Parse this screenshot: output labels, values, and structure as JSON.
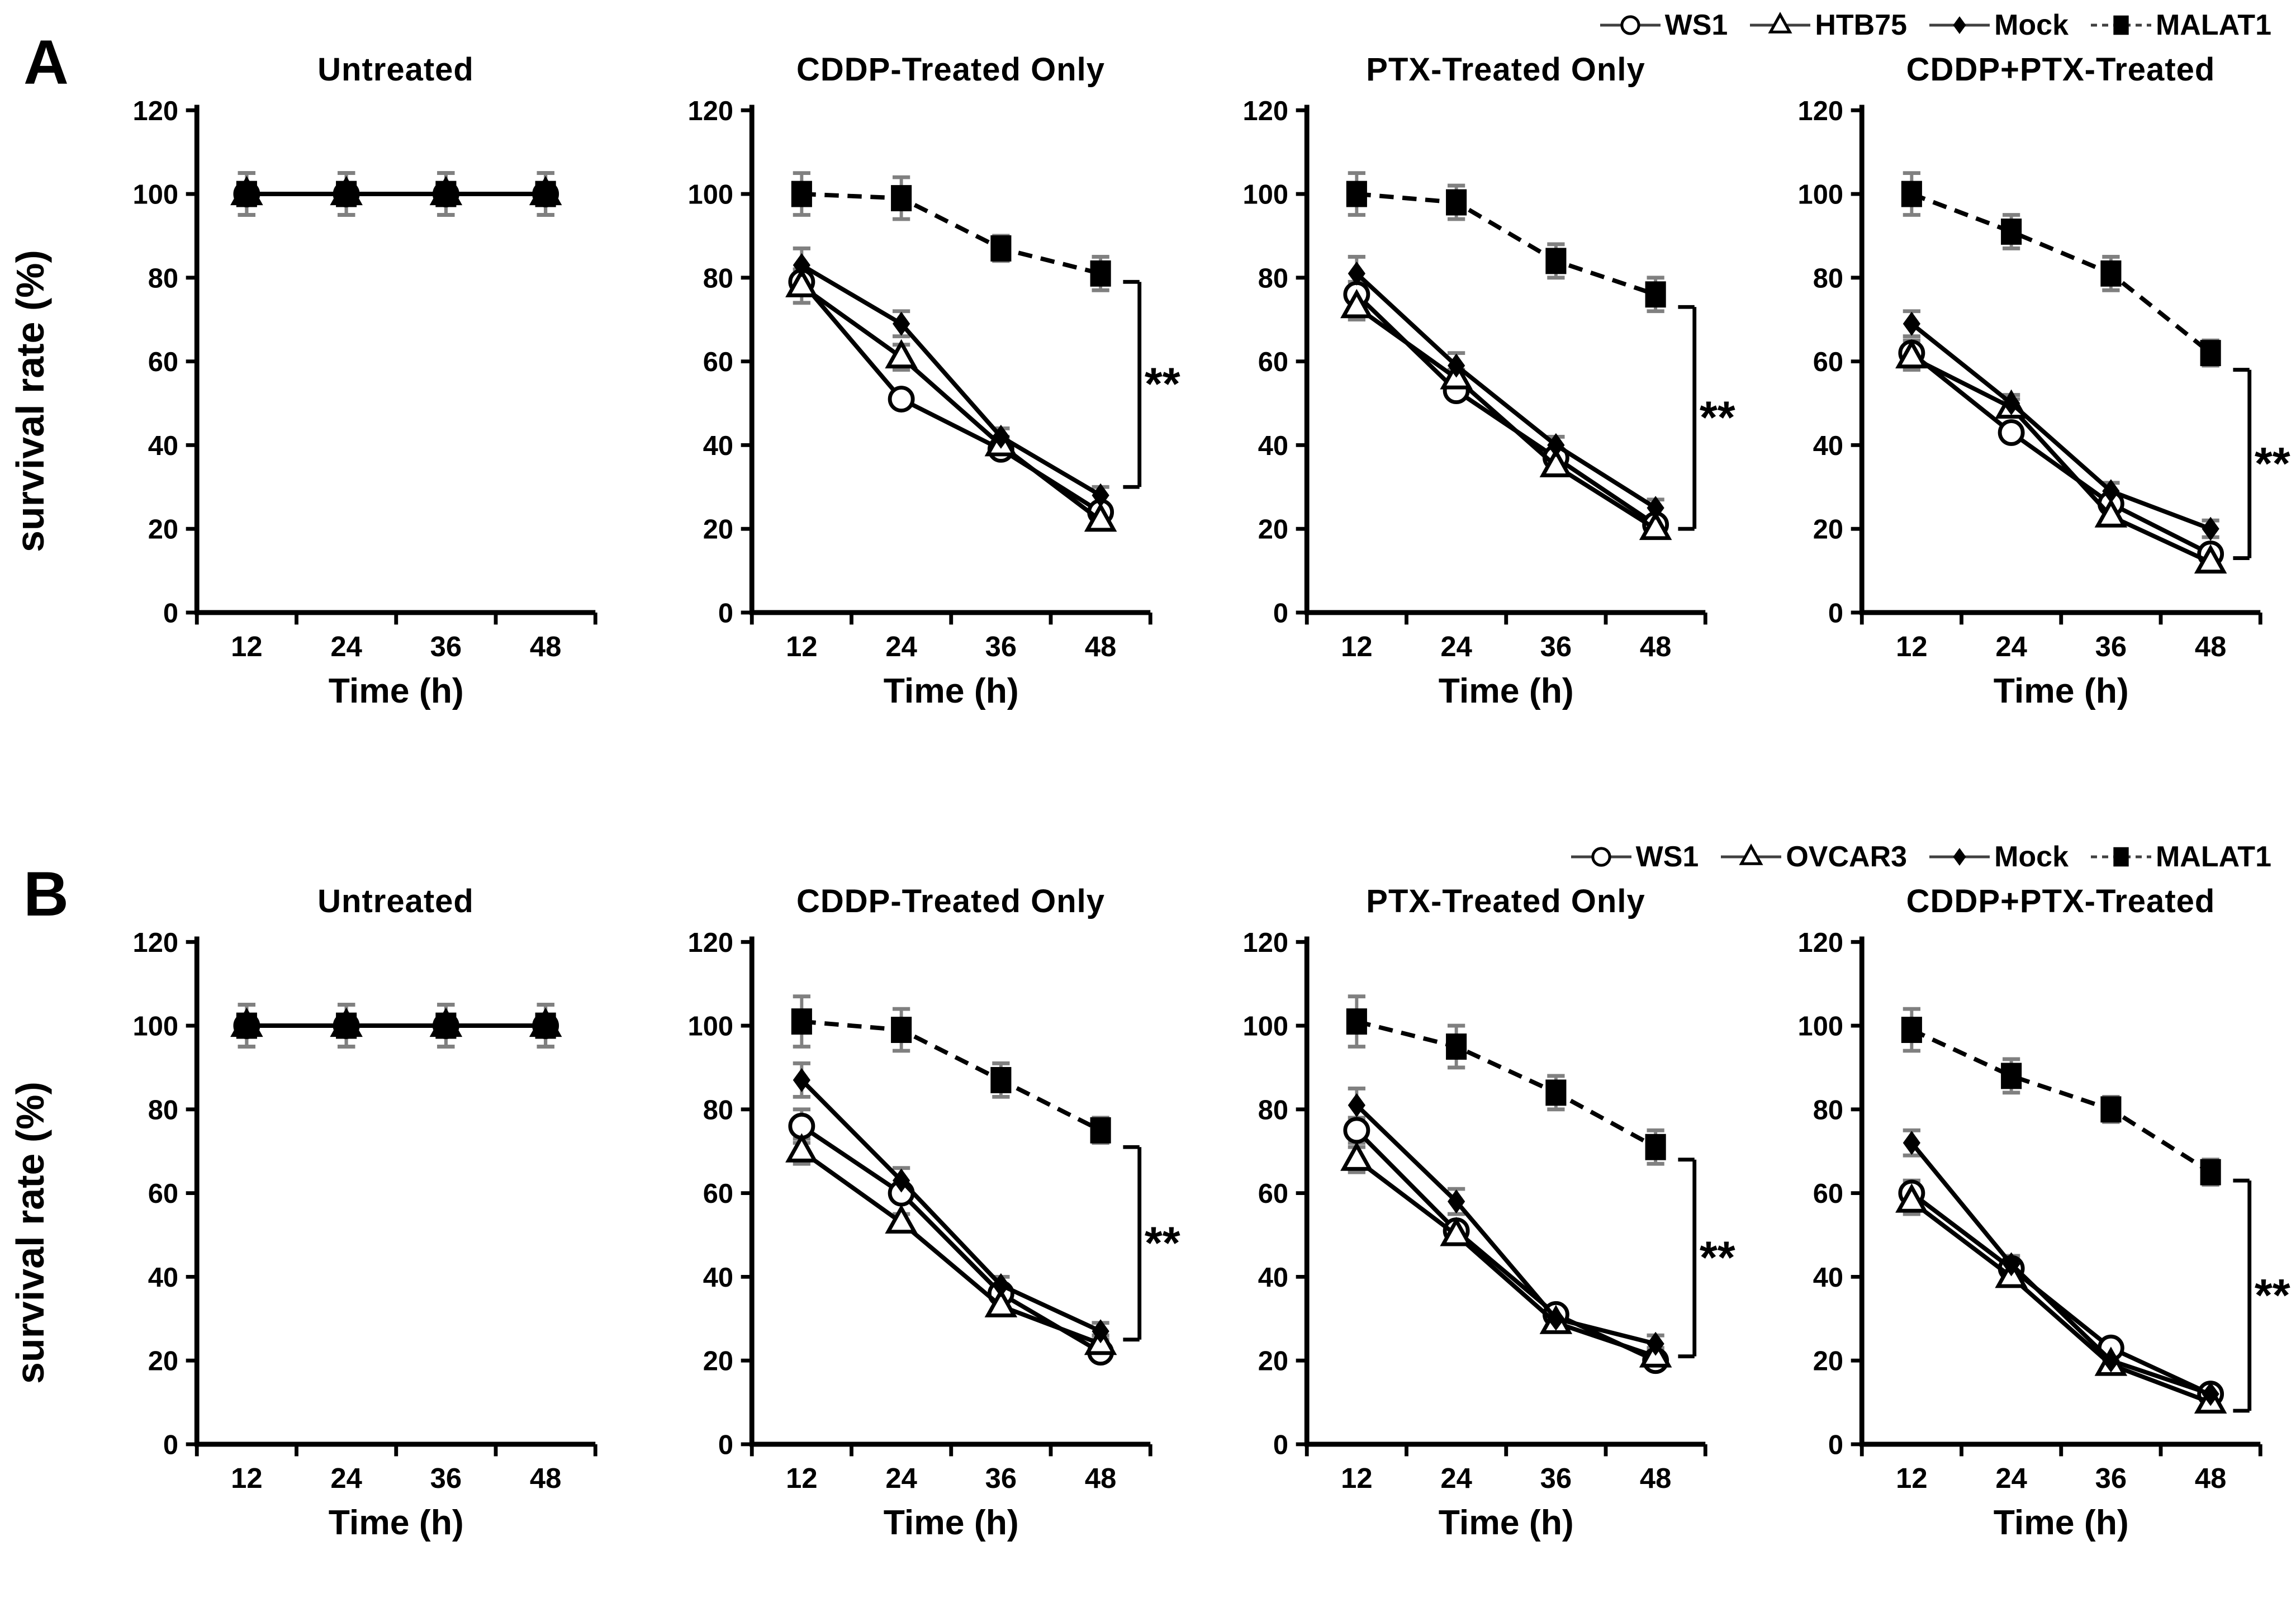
{
  "figure": {
    "significance": "**",
    "color_black": "#000000",
    "color_errorbar_gray": "#808080"
  },
  "chart_data": {
    "type": "line",
    "x": [
      12,
      24,
      36,
      48
    ],
    "xlabel": "Time (h)",
    "ylabel": "survival rate (%)",
    "ylim": [
      0,
      120
    ],
    "yticks": [
      0,
      20,
      40,
      60,
      80,
      100,
      120
    ],
    "grid": false,
    "legend_position": "top-right",
    "panels": [
      {
        "label": "A",
        "legend": [
          "WS1",
          "HTB75",
          "Mock",
          "MALAT1"
        ],
        "series_styles": [
          {
            "name": "WS1",
            "marker": "open-circle",
            "line": "solid"
          },
          {
            "name": "HTB75",
            "marker": "open-triangle",
            "line": "solid"
          },
          {
            "name": "Mock",
            "marker": "filled-diamond",
            "line": "solid"
          },
          {
            "name": "MALAT1",
            "marker": "filled-square",
            "line": "dashed"
          }
        ],
        "charts": [
          {
            "title": "Untreated",
            "series": [
              {
                "name": "WS1",
                "values": [
                  100,
                  100,
                  100,
                  100
                ],
                "err": [
                  5,
                  5,
                  5,
                  5
                ]
              },
              {
                "name": "HTB75",
                "values": [
                  100,
                  100,
                  100,
                  100
                ],
                "err": [
                  5,
                  5,
                  5,
                  5
                ]
              },
              {
                "name": "Mock",
                "values": [
                  100,
                  100,
                  100,
                  100
                ],
                "err": [
                  5,
                  5,
                  5,
                  5
                ]
              },
              {
                "name": "MALAT1",
                "values": [
                  100,
                  100,
                  100,
                  100
                ],
                "err": [
                  5,
                  5,
                  5,
                  5
                ]
              }
            ],
            "bracket": null
          },
          {
            "title": "CDDP-Treated Only",
            "series": [
              {
                "name": "WS1",
                "values": [
                  79,
                  51,
                  39,
                  24
                ],
                "err": [
                  3,
                  2,
                  2,
                  2
                ]
              },
              {
                "name": "HTB75",
                "values": [
                  78,
                  61,
                  40,
                  22
                ],
                "err": [
                  4,
                  3,
                  2,
                  2
                ]
              },
              {
                "name": "Mock",
                "values": [
                  83,
                  69,
                  42,
                  28
                ],
                "err": [
                  4,
                  3,
                  2,
                  2
                ]
              },
              {
                "name": "MALAT1",
                "values": [
                  100,
                  99,
                  87,
                  81
                ],
                "err": [
                  5,
                  5,
                  3,
                  4
                ]
              }
            ],
            "bracket": {
              "top": 79,
              "bottom": 30
            }
          },
          {
            "title": "PTX-Treated Only",
            "series": [
              {
                "name": "WS1",
                "values": [
                  76,
                  53,
                  37,
                  21
                ],
                "err": [
                  3,
                  2,
                  2,
                  2
                ]
              },
              {
                "name": "HTB75",
                "values": [
                  73,
                  56,
                  35,
                  20
                ],
                "err": [
                  3,
                  2,
                  2,
                  2
                ]
              },
              {
                "name": "Mock",
                "values": [
                  81,
                  59,
                  40,
                  25
                ],
                "err": [
                  4,
                  3,
                  2,
                  2
                ]
              },
              {
                "name": "MALAT1",
                "values": [
                  100,
                  98,
                  84,
                  76
                ],
                "err": [
                  5,
                  4,
                  4,
                  4
                ]
              }
            ],
            "bracket": {
              "top": 73,
              "bottom": 20
            }
          },
          {
            "title": "CDDP+PTX-Treated",
            "series": [
              {
                "name": "WS1",
                "values": [
                  62,
                  43,
                  26,
                  14
                ],
                "err": [
                  3,
                  2,
                  2,
                  2
                ]
              },
              {
                "name": "HTB75",
                "values": [
                  61,
                  49,
                  23,
                  12
                ],
                "err": [
                  3,
                  2,
                  2,
                  2
                ]
              },
              {
                "name": "Mock",
                "values": [
                  69,
                  50,
                  29,
                  20
                ],
                "err": [
                  3,
                  2,
                  2,
                  2
                ]
              },
              {
                "name": "MALAT1",
                "values": [
                  100,
                  91,
                  81,
                  62
                ],
                "err": [
                  5,
                  4,
                  4,
                  3
                ]
              }
            ],
            "bracket": {
              "top": 58,
              "bottom": 13
            }
          }
        ]
      },
      {
        "label": "B",
        "legend": [
          "WS1",
          "OVCAR3",
          "Mock",
          "MALAT1"
        ],
        "series_styles": [
          {
            "name": "WS1",
            "marker": "open-circle",
            "line": "solid"
          },
          {
            "name": "OVCAR3",
            "marker": "open-triangle",
            "line": "solid"
          },
          {
            "name": "Mock",
            "marker": "filled-diamond",
            "line": "solid"
          },
          {
            "name": "MALAT1",
            "marker": "filled-square",
            "line": "dashed"
          }
        ],
        "charts": [
          {
            "title": "Untreated",
            "series": [
              {
                "name": "WS1",
                "values": [
                  100,
                  100,
                  100,
                  100
                ],
                "err": [
                  5,
                  5,
                  5,
                  5
                ]
              },
              {
                "name": "OVCAR3",
                "values": [
                  100,
                  100,
                  100,
                  100
                ],
                "err": [
                  5,
                  5,
                  5,
                  5
                ]
              },
              {
                "name": "Mock",
                "values": [
                  100,
                  100,
                  100,
                  100
                ],
                "err": [
                  5,
                  5,
                  5,
                  5
                ]
              },
              {
                "name": "MALAT1",
                "values": [
                  100,
                  100,
                  100,
                  100
                ],
                "err": [
                  5,
                  5,
                  5,
                  5
                ]
              }
            ],
            "bracket": null
          },
          {
            "title": "CDDP-Treated Only",
            "series": [
              {
                "name": "WS1",
                "values": [
                  76,
                  60,
                  36,
                  22
                ],
                "err": [
                  4,
                  2,
                  2,
                  2
                ]
              },
              {
                "name": "OVCAR3",
                "values": [
                  70,
                  53,
                  33,
                  24
                ],
                "err": [
                  3,
                  2,
                  2,
                  2
                ]
              },
              {
                "name": "Mock",
                "values": [
                  87,
                  63,
                  38,
                  27
                ],
                "err": [
                  4,
                  3,
                  2,
                  2
                ]
              },
              {
                "name": "MALAT1",
                "values": [
                  101,
                  99,
                  87,
                  75
                ],
                "err": [
                  6,
                  5,
                  4,
                  3
                ]
              }
            ],
            "bracket": {
              "top": 71,
              "bottom": 25
            }
          },
          {
            "title": "PTX-Treated Only",
            "series": [
              {
                "name": "WS1",
                "values": [
                  75,
                  51,
                  31,
                  20
                ],
                "err": [
                  3,
                  2,
                  2,
                  2
                ]
              },
              {
                "name": "OVCAR3",
                "values": [
                  68,
                  50,
                  29,
                  21
                ],
                "err": [
                  3,
                  2,
                  2,
                  2
                ]
              },
              {
                "name": "Mock",
                "values": [
                  81,
                  58,
                  30,
                  24
                ],
                "err": [
                  4,
                  3,
                  2,
                  2
                ]
              },
              {
                "name": "MALAT1",
                "values": [
                  101,
                  95,
                  84,
                  71
                ],
                "err": [
                  6,
                  5,
                  4,
                  4
                ]
              }
            ],
            "bracket": {
              "top": 68,
              "bottom": 21
            }
          },
          {
            "title": "CDDP+PTX-Treated",
            "series": [
              {
                "name": "WS1",
                "values": [
                  60,
                  42,
                  23,
                  12
                ],
                "err": [
                  3,
                  2,
                  2,
                  2
                ]
              },
              {
                "name": "OVCAR3",
                "values": [
                  58,
                  40,
                  19,
                  10
                ],
                "err": [
                  3,
                  2,
                  2,
                  2
                ]
              },
              {
                "name": "Mock",
                "values": [
                  72,
                  43,
                  20,
                  12
                ],
                "err": [
                  3,
                  2,
                  2,
                  2
                ]
              },
              {
                "name": "MALAT1",
                "values": [
                  99,
                  88,
                  80,
                  65
                ],
                "err": [
                  5,
                  4,
                  3,
                  3
                ]
              }
            ],
            "bracket": {
              "top": 63,
              "bottom": 8
            }
          }
        ]
      }
    ]
  }
}
